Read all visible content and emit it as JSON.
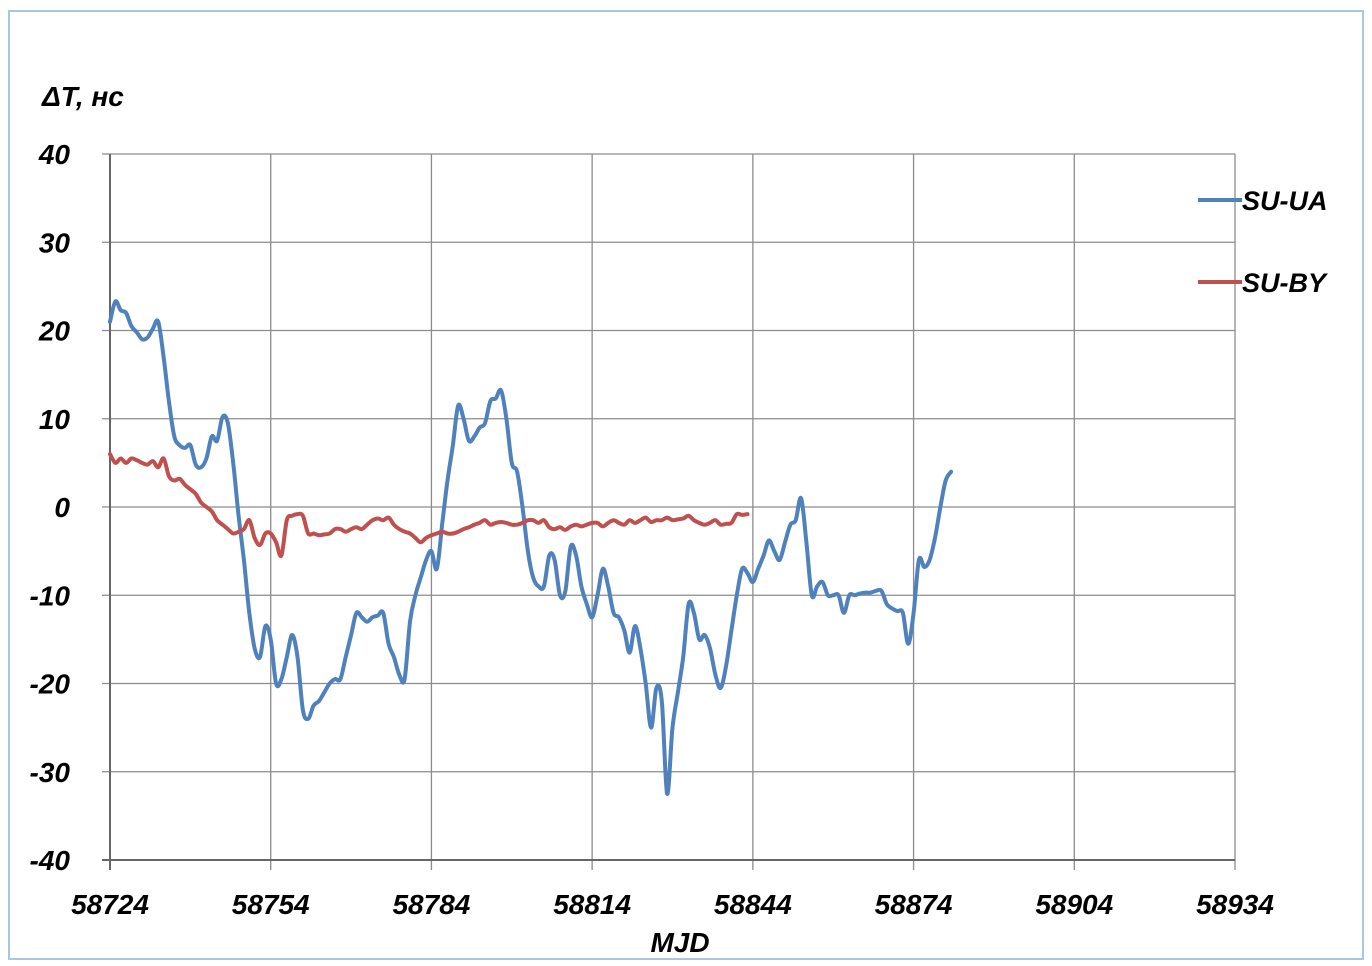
{
  "chart_data": {
    "type": "line",
    "ylabel": "ΔT, нс",
    "xlabel": "MJD",
    "xlim": [
      58724,
      58934
    ],
    "ylim": [
      -40,
      40
    ],
    "x_ticks": [
      58724,
      58754,
      58784,
      58814,
      58844,
      58874,
      58904,
      58934
    ],
    "y_ticks": [
      40,
      30,
      20,
      10,
      0,
      -10,
      -20,
      -30,
      -40
    ],
    "grid": true,
    "legend_position": "right",
    "series": [
      {
        "name": "SU-UA",
        "color": "#4f81bd",
        "points": [
          [
            58724,
            21
          ],
          [
            58725,
            23.3
          ],
          [
            58726,
            22.3
          ],
          [
            58727,
            22
          ],
          [
            58728,
            20.5
          ],
          [
            58729,
            19.8
          ],
          [
            58730,
            19
          ],
          [
            58731,
            19.2
          ],
          [
            58732,
            20.2
          ],
          [
            58733,
            21
          ],
          [
            58734,
            17
          ],
          [
            58735,
            12
          ],
          [
            58736,
            8
          ],
          [
            58737,
            7
          ],
          [
            58738,
            6.7
          ],
          [
            58739,
            7
          ],
          [
            58740,
            4.8
          ],
          [
            58741,
            4.5
          ],
          [
            58742,
            5.5
          ],
          [
            58743,
            8
          ],
          [
            58744,
            7.5
          ],
          [
            58745,
            10.2
          ],
          [
            58746,
            9.5
          ],
          [
            58747,
            5
          ],
          [
            58748,
            -1
          ],
          [
            58749,
            -6
          ],
          [
            58750,
            -12
          ],
          [
            58751,
            -16
          ],
          [
            58752,
            -17
          ],
          [
            58753,
            -13.5
          ],
          [
            58754,
            -15
          ],
          [
            58755,
            -20
          ],
          [
            58756,
            -19.5
          ],
          [
            58757,
            -17
          ],
          [
            58758,
            -14.5
          ],
          [
            58759,
            -17
          ],
          [
            58760,
            -23
          ],
          [
            58761,
            -24
          ],
          [
            58762,
            -22.5
          ],
          [
            58763,
            -22
          ],
          [
            58764,
            -21
          ],
          [
            58765,
            -20
          ],
          [
            58766,
            -19.5
          ],
          [
            58767,
            -19.5
          ],
          [
            58768,
            -17
          ],
          [
            58769,
            -14.5
          ],
          [
            58770,
            -12
          ],
          [
            58771,
            -12.5
          ],
          [
            58772,
            -13
          ],
          [
            58773,
            -12.5
          ],
          [
            58774,
            -12.3
          ],
          [
            58775,
            -12
          ],
          [
            58776,
            -15.5
          ],
          [
            58777,
            -17
          ],
          [
            58778,
            -19
          ],
          [
            58779,
            -19.5
          ],
          [
            58780,
            -13
          ],
          [
            58781,
            -10
          ],
          [
            58782,
            -8
          ],
          [
            58783,
            -6
          ],
          [
            58784,
            -5
          ],
          [
            58785,
            -7
          ],
          [
            58786,
            -2
          ],
          [
            58787,
            3
          ],
          [
            58788,
            7
          ],
          [
            58789,
            11.5
          ],
          [
            58790,
            10
          ],
          [
            58791,
            7.5
          ],
          [
            58792,
            8
          ],
          [
            58793,
            9
          ],
          [
            58794,
            9.5
          ],
          [
            58795,
            12
          ],
          [
            58796,
            12.3
          ],
          [
            58797,
            13.2
          ],
          [
            58798,
            10
          ],
          [
            58799,
            5
          ],
          [
            58800,
            4
          ],
          [
            58801,
            0
          ],
          [
            58802,
            -5
          ],
          [
            58803,
            -8
          ],
          [
            58804,
            -9
          ],
          [
            58805,
            -9
          ],
          [
            58806,
            -5.5
          ],
          [
            58807,
            -6
          ],
          [
            58808,
            -10
          ],
          [
            58809,
            -9.5
          ],
          [
            58810,
            -4.5
          ],
          [
            58811,
            -5.5
          ],
          [
            58812,
            -9
          ],
          [
            58813,
            -11
          ],
          [
            58814,
            -12.5
          ],
          [
            58815,
            -10
          ],
          [
            58816,
            -7
          ],
          [
            58817,
            -9
          ],
          [
            58818,
            -12
          ],
          [
            58819,
            -12.5
          ],
          [
            58820,
            -14
          ],
          [
            58821,
            -16.5
          ],
          [
            58822,
            -13.5
          ],
          [
            58823,
            -16
          ],
          [
            58824,
            -20
          ],
          [
            58825,
            -25
          ],
          [
            58826,
            -20.5
          ],
          [
            58827,
            -22
          ],
          [
            58828,
            -32.5
          ],
          [
            58829,
            -25
          ],
          [
            58830,
            -21
          ],
          [
            58831,
            -17
          ],
          [
            58832,
            -11
          ],
          [
            58833,
            -12
          ],
          [
            58834,
            -15
          ],
          [
            58835,
            -14.5
          ],
          [
            58836,
            -16
          ],
          [
            58837,
            -19
          ],
          [
            58838,
            -20.5
          ],
          [
            58839,
            -18
          ],
          [
            58840,
            -14
          ],
          [
            58841,
            -10
          ],
          [
            58842,
            -7
          ],
          [
            58843,
            -7.5
          ],
          [
            58844,
            -8.5
          ],
          [
            58845,
            -7
          ],
          [
            58846,
            -5.5
          ],
          [
            58847,
            -3.8
          ],
          [
            58848,
            -5
          ],
          [
            58849,
            -6
          ],
          [
            58850,
            -4
          ],
          [
            58851,
            -2
          ],
          [
            58852,
            -1.5
          ],
          [
            58853,
            1
          ],
          [
            58854,
            -4
          ],
          [
            58855,
            -10
          ],
          [
            58856,
            -9
          ],
          [
            58857,
            -8.5
          ],
          [
            58858,
            -10
          ],
          [
            58859,
            -10
          ],
          [
            58860,
            -10
          ],
          [
            58861,
            -12
          ],
          [
            58862,
            -10
          ],
          [
            58863,
            -10
          ],
          [
            58864,
            -9.8
          ],
          [
            58865,
            -9.7
          ],
          [
            58866,
            -9.7
          ],
          [
            58867,
            -9.5
          ],
          [
            58868,
            -9.5
          ],
          [
            58869,
            -11
          ],
          [
            58870,
            -11.5
          ],
          [
            58871,
            -11.8
          ],
          [
            58872,
            -12
          ],
          [
            58873,
            -15.5
          ],
          [
            58874,
            -12
          ],
          [
            58875,
            -6
          ],
          [
            58876,
            -6.8
          ],
          [
            58877,
            -6
          ],
          [
            58878,
            -3.5
          ],
          [
            58879,
            0
          ],
          [
            58880,
            3
          ],
          [
            58881,
            4
          ]
        ]
      },
      {
        "name": "SU-BY",
        "color": "#c0504d",
        "points": [
          [
            58724,
            6
          ],
          [
            58725,
            5
          ],
          [
            58726,
            5.5
          ],
          [
            58727,
            5
          ],
          [
            58728,
            5.5
          ],
          [
            58729,
            5.3
          ],
          [
            58730,
            5
          ],
          [
            58731,
            4.8
          ],
          [
            58732,
            5.2
          ],
          [
            58733,
            4.5
          ],
          [
            58734,
            5.5
          ],
          [
            58735,
            3.5
          ],
          [
            58736,
            3
          ],
          [
            58737,
            3.2
          ],
          [
            58738,
            2.5
          ],
          [
            58739,
            2
          ],
          [
            58740,
            1.5
          ],
          [
            58741,
            0.5
          ],
          [
            58742,
            0
          ],
          [
            58743,
            -0.5
          ],
          [
            58744,
            -1.5
          ],
          [
            58745,
            -2
          ],
          [
            58746,
            -2.5
          ],
          [
            58747,
            -3
          ],
          [
            58748,
            -2.8
          ],
          [
            58749,
            -2.5
          ],
          [
            58750,
            -1.5
          ],
          [
            58751,
            -3.5
          ],
          [
            58752,
            -4.3
          ],
          [
            58753,
            -3
          ],
          [
            58754,
            -3
          ],
          [
            58755,
            -4
          ],
          [
            58756,
            -5.5
          ],
          [
            58757,
            -1.5
          ],
          [
            58758,
            -1
          ],
          [
            58759,
            -0.8
          ],
          [
            58760,
            -1
          ],
          [
            58761,
            -3
          ],
          [
            58762,
            -3
          ],
          [
            58763,
            -3.2
          ],
          [
            58764,
            -3.1
          ],
          [
            58765,
            -3
          ],
          [
            58766,
            -2.5
          ],
          [
            58767,
            -2.5
          ],
          [
            58768,
            -2.8
          ],
          [
            58769,
            -2.5
          ],
          [
            58770,
            -2.3
          ],
          [
            58771,
            -2.5
          ],
          [
            58772,
            -2
          ],
          [
            58773,
            -1.5
          ],
          [
            58774,
            -1.3
          ],
          [
            58775,
            -1.5
          ],
          [
            58776,
            -1.2
          ],
          [
            58777,
            -2
          ],
          [
            58778,
            -2.5
          ],
          [
            58779,
            -2.8
          ],
          [
            58780,
            -3
          ],
          [
            58781,
            -3.5
          ],
          [
            58782,
            -4
          ],
          [
            58783,
            -3.5
          ],
          [
            58784,
            -3.2
          ],
          [
            58785,
            -3
          ],
          [
            58786,
            -2.8
          ],
          [
            58787,
            -3
          ],
          [
            58788,
            -3
          ],
          [
            58789,
            -2.8
          ],
          [
            58790,
            -2.5
          ],
          [
            58791,
            -2.3
          ],
          [
            58792,
            -2
          ],
          [
            58793,
            -1.8
          ],
          [
            58794,
            -1.5
          ],
          [
            58795,
            -2
          ],
          [
            58796,
            -1.8
          ],
          [
            58797,
            -1.7
          ],
          [
            58798,
            -1.8
          ],
          [
            58799,
            -2
          ],
          [
            58800,
            -2
          ],
          [
            58801,
            -1.8
          ],
          [
            58802,
            -1.5
          ],
          [
            58803,
            -1.5
          ],
          [
            58804,
            -1.8
          ],
          [
            58805,
            -1.5
          ],
          [
            58806,
            -2.3
          ],
          [
            58807,
            -2.5
          ],
          [
            58808,
            -2.3
          ],
          [
            58809,
            -2.6
          ],
          [
            58810,
            -2.2
          ],
          [
            58811,
            -2
          ],
          [
            58812,
            -2.2
          ],
          [
            58813,
            -2
          ],
          [
            58814,
            -1.8
          ],
          [
            58815,
            -1.8
          ],
          [
            58816,
            -2.2
          ],
          [
            58817,
            -1.8
          ],
          [
            58818,
            -1.5
          ],
          [
            58819,
            -1.8
          ],
          [
            58820,
            -2
          ],
          [
            58821,
            -1.5
          ],
          [
            58822,
            -1.8
          ],
          [
            58823,
            -1.5
          ],
          [
            58824,
            -1.2
          ],
          [
            58825,
            -1.7
          ],
          [
            58826,
            -1.5
          ],
          [
            58827,
            -1.5
          ],
          [
            58828,
            -1.2
          ],
          [
            58829,
            -1.5
          ],
          [
            58830,
            -1.4
          ],
          [
            58831,
            -1.3
          ],
          [
            58832,
            -1
          ],
          [
            58833,
            -1.5
          ],
          [
            58834,
            -1.8
          ],
          [
            58835,
            -2
          ],
          [
            58836,
            -1.8
          ],
          [
            58837,
            -1.5
          ],
          [
            58838,
            -2
          ],
          [
            58839,
            -1.9
          ],
          [
            58840,
            -1.8
          ],
          [
            58841,
            -0.8
          ],
          [
            58842,
            -0.9
          ],
          [
            58843,
            -0.8
          ]
        ]
      }
    ]
  }
}
